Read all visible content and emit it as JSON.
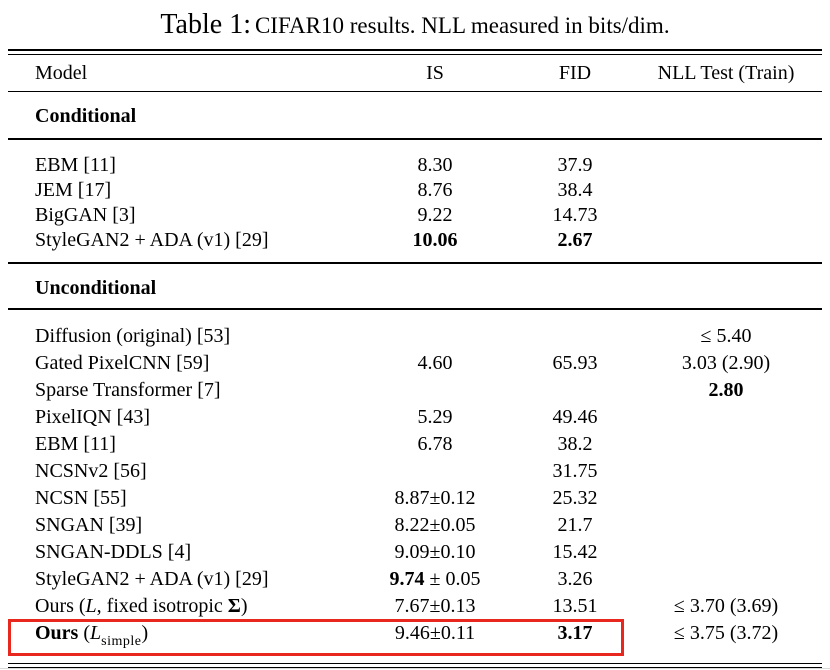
{
  "title": {
    "prefix": "Table 1:",
    "rest": " CIFAR10 results. NLL measured in bits/dim."
  },
  "columns": {
    "model": "Model",
    "is": "IS",
    "fid": "FID",
    "nll": "NLL Test (Train)"
  },
  "annotation": {
    "highlight_color": "#e8281e"
  },
  "sections": [
    {
      "header": "Conditional",
      "rows": [
        {
          "model": "EBM [11]",
          "is": "8.30",
          "fid": "37.9",
          "nll": ""
        },
        {
          "model": "JEM [17]",
          "is": "8.76",
          "fid": "38.4",
          "nll": ""
        },
        {
          "model": "BigGAN [3]",
          "is": "9.22",
          "fid": "14.73",
          "nll": ""
        },
        {
          "model": "StyleGAN2 + ADA (v1) [29]",
          "is": [
            {
              "t": "10.06",
              "b": true
            }
          ],
          "fid": [
            {
              "t": "2.67",
              "b": true
            }
          ],
          "nll": ""
        }
      ]
    },
    {
      "header": "Unconditional",
      "rows": [
        {
          "model": "Diffusion (original) [53]",
          "is": "",
          "fid": "",
          "nll": "≤ 5.40"
        },
        {
          "model": "Gated PixelCNN [59]",
          "is": "4.60",
          "fid": "65.93",
          "nll": "3.03 (2.90)"
        },
        {
          "model": "Sparse Transformer [7]",
          "is": "",
          "fid": "",
          "nll": [
            {
              "t": "2.80",
              "b": true
            }
          ]
        },
        {
          "model": "PixelIQN [43]",
          "is": "5.29",
          "fid": "49.46",
          "nll": ""
        },
        {
          "model": "EBM [11]",
          "is": "6.78",
          "fid": "38.2",
          "nll": ""
        },
        {
          "model": "NCSNv2 [56]",
          "is": "",
          "fid": "31.75",
          "nll": ""
        },
        {
          "model": "NCSN [55]",
          "is": "8.87±0.12",
          "fid": "25.32",
          "nll": ""
        },
        {
          "model": "SNGAN [39]",
          "is": "8.22±0.05",
          "fid": "21.7",
          "nll": ""
        },
        {
          "model": "SNGAN-DDLS [4]",
          "is": "9.09±0.10",
          "fid": "15.42",
          "nll": ""
        },
        {
          "model": "StyleGAN2 + ADA (v1) [29]",
          "is": [
            {
              "t": "9.74",
              "b": true
            },
            {
              "t": " ± 0.05"
            }
          ],
          "fid": "3.26",
          "nll": ""
        },
        {
          "model": [
            {
              "t": "Ours ("
            },
            {
              "t": "L",
              "i": true
            },
            {
              "t": ", fixed isotropic "
            },
            {
              "t": "Σ",
              "b": true
            },
            {
              "t": ")"
            }
          ],
          "is": "7.67±0.13",
          "fid": "13.51",
          "nll": "≤ 3.70 (3.69)"
        },
        {
          "model": [
            {
              "t": "Ours",
              "b": true
            },
            {
              "t": " ("
            },
            {
              "t": "L",
              "i": true
            },
            {
              "t": "simple",
              "sub": true
            },
            {
              "t": ")"
            }
          ],
          "is": "9.46±0.11",
          "fid": [
            {
              "t": "3.17",
              "b": true
            }
          ],
          "nll": "≤ 3.75 (3.72)",
          "highlight": true
        }
      ]
    }
  ]
}
